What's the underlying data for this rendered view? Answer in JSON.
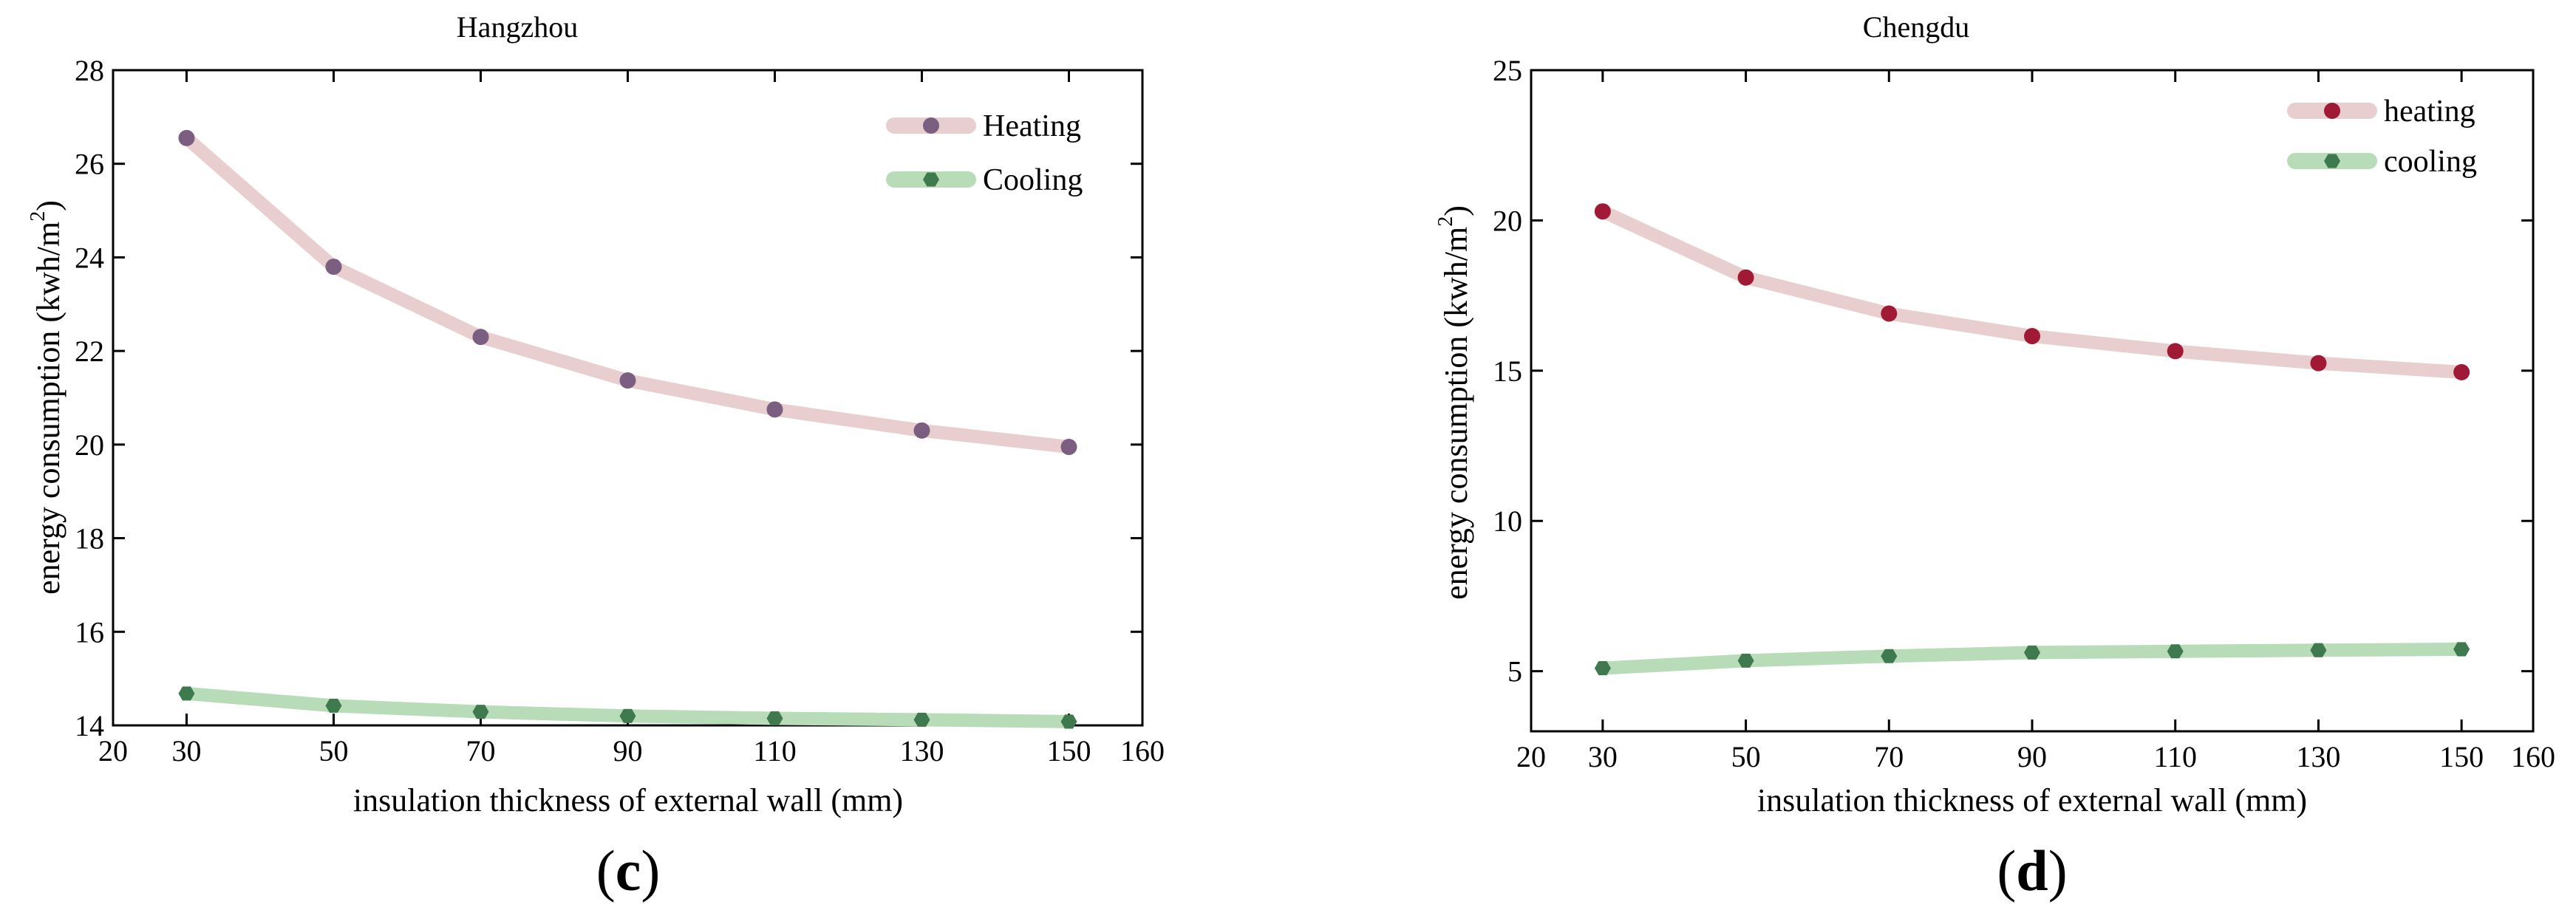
{
  "chart_data": [
    {
      "type": "line",
      "title": "Hangzhou",
      "xlabel": "insulation thickness of external wall (mm)",
      "ylabel": "energy consumption (kwh/m",
      "ylabel_sup": "2",
      "ylabel_close": ")",
      "panel_open": "(",
      "panel_letter": "c",
      "panel_close": ")",
      "x": [
        30,
        50,
        70,
        90,
        110,
        130,
        150
      ],
      "xlim": [
        20,
        160
      ],
      "xticks": [
        20,
        30,
        50,
        70,
        90,
        110,
        130,
        150,
        160
      ],
      "ylim": [
        14,
        28
      ],
      "yticks": [
        14,
        16,
        18,
        20,
        22,
        24,
        26,
        28
      ],
      "grid": false,
      "legend_position": "top-right",
      "series": [
        {
          "name": "Heating",
          "values": [
            26.55,
            23.8,
            22.3,
            21.37,
            20.75,
            20.3,
            19.95
          ],
          "line_color": "#e8cece",
          "marker_color": "#7b5e80",
          "marker": "circle"
        },
        {
          "name": "Cooling",
          "values": [
            14.68,
            14.42,
            14.29,
            14.2,
            14.15,
            14.12,
            14.08
          ],
          "line_color": "#b8dcb8",
          "marker_color": "#3f7a4e",
          "marker": "hexagon"
        }
      ]
    },
    {
      "type": "line",
      "title": "Chengdu",
      "xlabel": "insulation thickness of external wall (mm)",
      "ylabel": "energy consumption (kwh/m",
      "ylabel_sup": "2",
      "ylabel_close": ")",
      "panel_open": "(",
      "panel_letter": "d",
      "panel_close": ")",
      "x": [
        30,
        50,
        70,
        90,
        110,
        130,
        150
      ],
      "xlim": [
        20,
        160
      ],
      "xticks": [
        20,
        30,
        50,
        70,
        90,
        110,
        130,
        150,
        160
      ],
      "ylim": [
        3,
        25
      ],
      "yticks": [
        5,
        10,
        15,
        20,
        25
      ],
      "grid": false,
      "legend_position": "top-right",
      "series": [
        {
          "name": "heating",
          "values": [
            20.3,
            18.1,
            16.9,
            16.15,
            15.65,
            15.25,
            14.95
          ],
          "line_color": "#e8cece",
          "marker_color": "#a01a35",
          "marker": "circle"
        },
        {
          "name": "cooling",
          "values": [
            5.1,
            5.35,
            5.5,
            5.62,
            5.66,
            5.7,
            5.73
          ],
          "line_color": "#b8dcb8",
          "marker_color": "#3f7a4e",
          "marker": "hexagon"
        }
      ]
    }
  ]
}
